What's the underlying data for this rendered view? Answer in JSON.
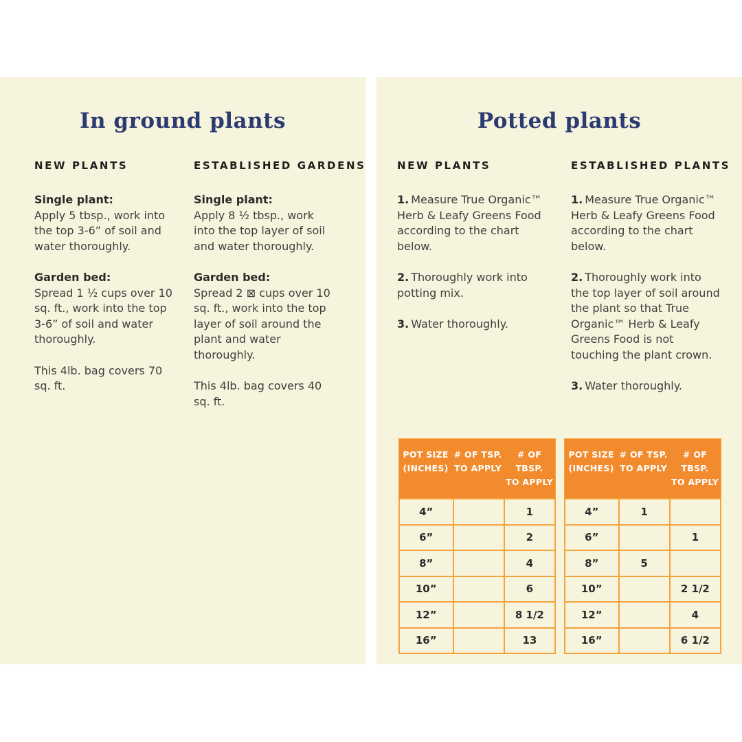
{
  "palette": {
    "page_bg": "#ffffff",
    "panel_bg": "#f7f4dd",
    "title_navy": "#2b3a70",
    "body_text": "#3f3e3d",
    "orange_header": "#f28b2d",
    "orange_border": "#f5a33c"
  },
  "left_panel": {
    "title": "In ground plants",
    "columns": [
      {
        "header": "NEW PLANTS",
        "blocks": [
          {
            "label": "Single plant:",
            "text": "Apply 5 tbsp., work into the top 3-6” of soil and water thoroughly."
          },
          {
            "label": "Garden bed:",
            "text": "Spread 1 ½ cups over 10 sq. ft., work into the top 3-6” of soil and water thoroughly."
          },
          {
            "label": "",
            "text": "This 4lb. bag covers 70 sq. ft."
          }
        ]
      },
      {
        "header": "ESTABLISHED GARDENS",
        "blocks": [
          {
            "label": "Single plant:",
            "text": "Apply 8 ½ tbsp., work into the top layer of soil and water thoroughly."
          },
          {
            "label": "Garden bed:",
            "text": "Spread 2 ⊠ cups over 10 sq. ft., work into the top layer of soil around the plant and water thoroughly."
          },
          {
            "label": "",
            "text": "This 4lb. bag covers 40 sq. ft."
          }
        ]
      }
    ]
  },
  "right_panel": {
    "title": "Potted plants",
    "columns": [
      {
        "header": "NEW PLANTS",
        "steps": [
          {
            "num": "1.",
            "text": "Measure True Organic™ Herb & Leafy Greens Food according to the chart below."
          },
          {
            "num": "2.",
            "text": "Thoroughly work into potting mix."
          },
          {
            "num": "3.",
            "text": "Water thoroughly."
          }
        ]
      },
      {
        "header": "ESTABLISHED PLANTS",
        "steps": [
          {
            "num": "1.",
            "text": "Measure True Organic™ Herb & Leafy Greens Food according to the chart below."
          },
          {
            "num": "2.",
            "text": "Thoroughly work into the top layer of soil around the plant so that True Organic™ Herb & Leafy Greens Food is not touching the plant crown."
          },
          {
            "num": "3.",
            "text": "Water thoroughly."
          }
        ]
      }
    ],
    "tables": [
      {
        "name": "new-plants-dosing",
        "header": [
          {
            "line1": "POT SIZE",
            "line2": "(INCHES)"
          },
          {
            "line1": "# OF TSP.",
            "line2": "TO APPLY"
          },
          {
            "line1": "# OF TBSP.",
            "line2": "TO APPLY"
          }
        ],
        "rows": [
          [
            "4”",
            "",
            "1"
          ],
          [
            "6”",
            "",
            "2"
          ],
          [
            "8”",
            "",
            "4"
          ],
          [
            "10”",
            "",
            "6"
          ],
          [
            "12”",
            "",
            "8 1/2"
          ],
          [
            "16”",
            "",
            "13"
          ]
        ]
      },
      {
        "name": "established-plants-dosing",
        "header": [
          {
            "line1": "POT SIZE",
            "line2": "(INCHES)"
          },
          {
            "line1": "# OF TSP.",
            "line2": "TO APPLY"
          },
          {
            "line1": "# OF TBSP.",
            "line2": "TO APPLY"
          }
        ],
        "rows": [
          [
            "4”",
            "1",
            ""
          ],
          [
            "6”",
            "",
            "1"
          ],
          [
            "8”",
            "5",
            ""
          ],
          [
            "10”",
            "",
            "2 1/2"
          ],
          [
            "12”",
            "",
            "4"
          ],
          [
            "16”",
            "",
            "6 1/2"
          ]
        ]
      }
    ]
  }
}
